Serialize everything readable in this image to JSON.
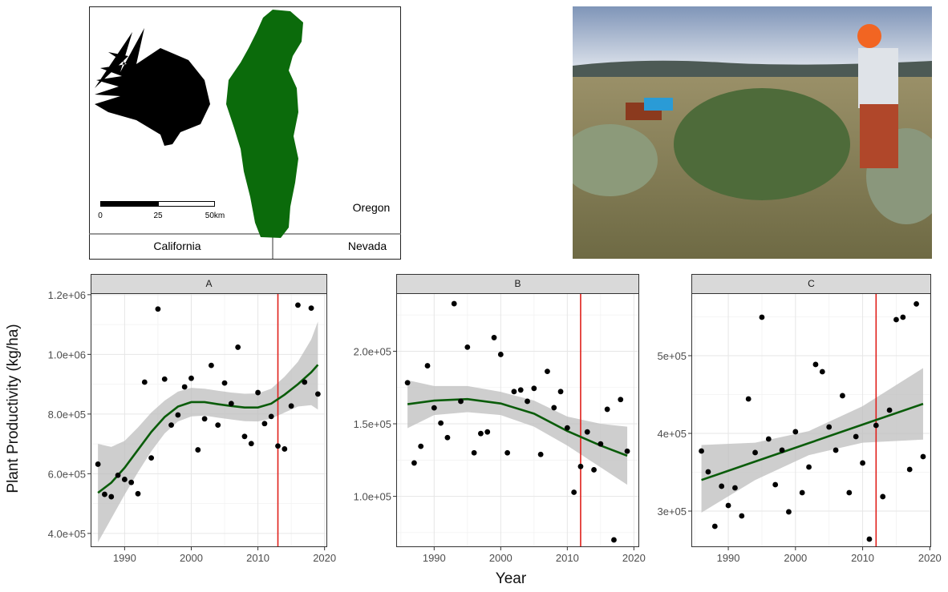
{
  "map": {
    "states": [
      "Oregon",
      "California",
      "Nevada"
    ],
    "scale_labels": [
      "0",
      "25",
      "50km"
    ]
  },
  "chart_data": [
    {
      "type": "scatter",
      "title": "A",
      "y_label": "Plant Productivity (kg/ha)",
      "x": [
        1986,
        1987,
        1988,
        1989,
        1990,
        1991,
        1992,
        1993,
        1994,
        1995,
        1996,
        1997,
        1998,
        1999,
        2000,
        2001,
        2002,
        2003,
        2004,
        2005,
        2006,
        2007,
        2008,
        2009,
        2010,
        2011,
        2012,
        2013,
        2014,
        2015,
        2016,
        2017,
        2018,
        2019
      ],
      "values": [
        632000,
        531000,
        523000,
        595000,
        581000,
        571000,
        533000,
        907000,
        653000,
        1152000,
        917000,
        763000,
        797000,
        891000,
        920000,
        680000,
        784000,
        963000,
        763000,
        904000,
        835000,
        1024000,
        725000,
        701000,
        872000,
        768000,
        792000,
        693000,
        683000,
        827000,
        1165000,
        907000,
        1155000,
        867000
      ],
      "color": "#000000",
      "smooth": {
        "x": [
          1986,
          1988,
          1990,
          1992,
          1994,
          1996,
          1998,
          2000,
          2002,
          2004,
          2006,
          2008,
          2010,
          2012,
          2014,
          2016,
          2018,
          2019
        ],
        "values": [
          536000,
          570000,
          620000,
          680000,
          740000,
          790000,
          825000,
          840000,
          840000,
          833000,
          827000,
          822000,
          822000,
          835000,
          865000,
          900000,
          940000,
          965000
        ],
        "lower": [
          370000,
          450000,
          530000,
          605000,
          675000,
          735000,
          775000,
          792000,
          795000,
          788000,
          782000,
          776000,
          775000,
          785000,
          805000,
          825000,
          830000,
          815000
        ],
        "upper": [
          700000,
          690000,
          710000,
          755000,
          805000,
          845000,
          875000,
          888000,
          885000,
          878000,
          872000,
          868000,
          869000,
          885000,
          925000,
          975000,
          1050000,
          1110000
        ],
        "color": "#0a5c0a",
        "band_color": "#bebebe"
      },
      "vline": {
        "x": 2013,
        "color": "#e0201b"
      },
      "xlim": [
        1984.9,
        2020.4
      ],
      "ylim": [
        354000,
        1205000
      ],
      "xticks": [
        1990,
        2000,
        2010,
        2020
      ],
      "yticks": [
        {
          "value": 400000,
          "label": "4.0e+05"
        },
        {
          "value": 600000,
          "label": "6.0e+05"
        },
        {
          "value": 800000,
          "label": "8.0e+05"
        },
        {
          "value": 1000000,
          "label": "1.0e+06"
        },
        {
          "value": 1200000,
          "label": "1.2e+06"
        }
      ],
      "grid": true
    },
    {
      "type": "scatter",
      "title": "B",
      "x_label": "Year",
      "x": [
        1986,
        1987,
        1988,
        1989,
        1990,
        1991,
        1992,
        1993,
        1994,
        1995,
        1996,
        1997,
        1998,
        1999,
        2000,
        2001,
        2002,
        2003,
        2004,
        2005,
        2006,
        2007,
        2008,
        2009,
        2010,
        2011,
        2012,
        2013,
        2014,
        2015,
        2016,
        2017,
        2018,
        2019
      ],
      "values": [
        178300,
        123000,
        134500,
        190000,
        161000,
        150500,
        140500,
        232800,
        165500,
        202800,
        130000,
        143300,
        144400,
        209400,
        197800,
        130000,
        172200,
        173300,
        165500,
        174400,
        128900,
        186100,
        161100,
        172200,
        147200,
        102800,
        120600,
        144400,
        118300,
        136100,
        160000,
        70000,
        166700,
        131100
      ],
      "color": "#000000",
      "smooth": {
        "x": [
          1986,
          1990,
          1995,
          2000,
          2005,
          2010,
          2015,
          2019
        ],
        "values": [
          163500,
          166000,
          167000,
          164000,
          157000,
          145000,
          135000,
          128000
        ],
        "lower": [
          147000,
          156000,
          158000,
          156000,
          148000,
          135000,
          120000,
          108000
        ],
        "upper": [
          180000,
          176000,
          176000,
          172000,
          166000,
          155000,
          150000,
          148000
        ],
        "color": "#0a5c0a",
        "band_color": "#bebebe"
      },
      "vline": {
        "x": 2012,
        "color": "#e0201b"
      },
      "xlim": [
        1984.3,
        2020.8
      ],
      "ylim": [
        65000,
        240000
      ],
      "xticks": [
        1990,
        2000,
        2010,
        2020
      ],
      "yticks": [
        {
          "value": 100000,
          "label": "1.0e+05"
        },
        {
          "value": 150000,
          "label": "1.5e+05"
        },
        {
          "value": 200000,
          "label": "2.0e+05"
        }
      ],
      "grid": true
    },
    {
      "type": "scatter",
      "title": "C",
      "x": [
        1986,
        1987,
        1988,
        1989,
        1990,
        1991,
        1992,
        1993,
        1994,
        1995,
        1996,
        1997,
        1998,
        1999,
        2000,
        2001,
        2002,
        2003,
        2004,
        2005,
        2006,
        2007,
        2008,
        2009,
        2010,
        2011,
        2012,
        2013,
        2014,
        2015,
        2016,
        2017,
        2018,
        2019
      ],
      "values": [
        377300,
        350500,
        280400,
        332000,
        307200,
        329900,
        293800,
        444300,
        375300,
        549500,
        392800,
        334000,
        378400,
        299000,
        402100,
        323700,
        356700,
        488700,
        479400,
        408200,
        378400,
        448500,
        323700,
        395900,
        361900,
        263900,
        410300,
        318600,
        429900,
        546400,
        549500,
        353600,
        566600,
        370100
      ],
      "color": "#000000",
      "smooth": {
        "x": [
          1986,
          1994,
          2002,
          2010,
          2019
        ],
        "values": [
          340000,
          363800,
          387500,
          411300,
          438000
        ],
        "lower": [
          298000,
          340000,
          372000,
          388000,
          392000
        ],
        "upper": [
          385000,
          388000,
          403000,
          435000,
          484000
        ],
        "color": "#0a5c0a",
        "band_color": "#bebebe"
      },
      "vline": {
        "x": 2012,
        "color": "#e0201b"
      },
      "xlim": [
        1984.5,
        2020.2
      ],
      "ylim": [
        253600,
        580400
      ],
      "xticks": [
        1990,
        2000,
        2010,
        2020
      ],
      "yticks": [
        {
          "value": 300000,
          "label": "3e+05"
        },
        {
          "value": 400000,
          "label": "4e+05"
        },
        {
          "value": 500000,
          "label": "5e+05"
        }
      ],
      "grid": true
    }
  ]
}
